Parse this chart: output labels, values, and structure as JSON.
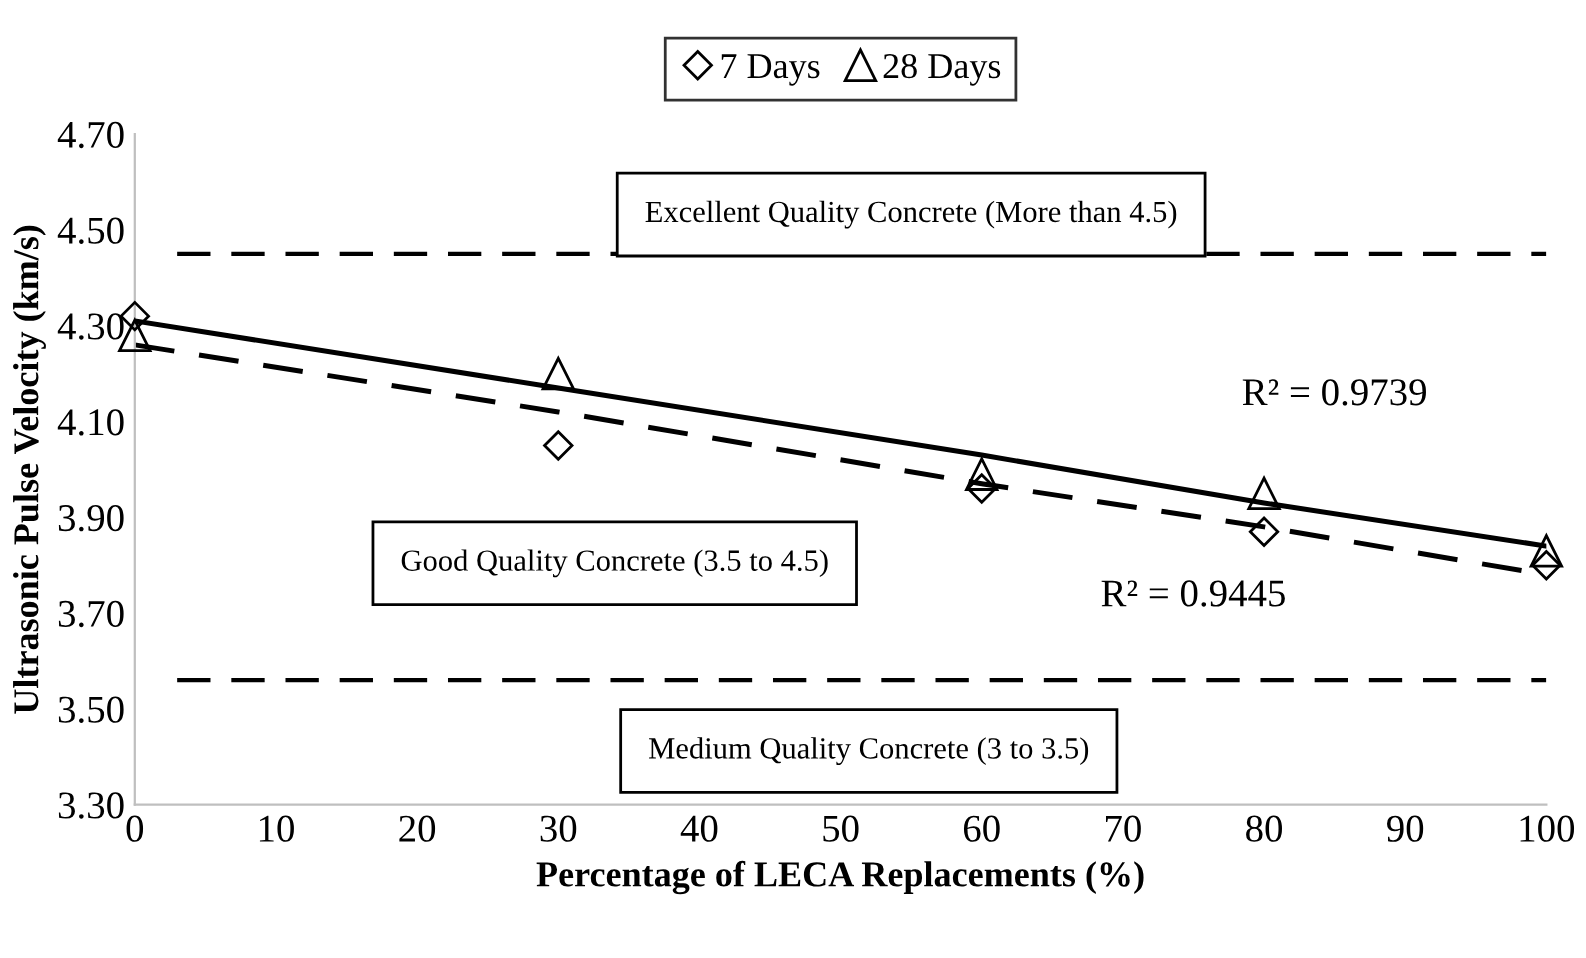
{
  "chart_data": {
    "type": "scatter",
    "xlabel": "Percentage of LECA Replacements (%)",
    "ylabel": "Ultrasonic Pulse Velocity (km/s)",
    "x": [
      0,
      30,
      60,
      80,
      100
    ],
    "series": [
      {
        "name": "7 Days",
        "color": "#000000",
        "marker": "diamond",
        "values": [
          4.32,
          4.05,
          3.96,
          3.87,
          3.8
        ]
      },
      {
        "name": "28 Days",
        "color": "#000000",
        "marker": "triangle",
        "values": [
          4.28,
          4.2,
          3.99,
          3.95,
          3.83
        ]
      },
      {
        "type": "line",
        "color": "#000000",
        "line_style": "solid",
        "marker": "none",
        "values": [
          4.31,
          4.17,
          4.03,
          3.93,
          3.84
        ]
      },
      {
        "type": "line",
        "color": "#000000",
        "line_style": "dashed",
        "marker": "none",
        "values": [
          4.26,
          4.12,
          3.97,
          3.88,
          3.78
        ]
      }
    ],
    "xlim": [
      0,
      100
    ],
    "xticks": [
      0,
      10,
      20,
      30,
      40,
      50,
      60,
      70,
      80,
      90,
      100
    ],
    "ylim": [
      3.3,
      4.7
    ],
    "yticks": [
      {
        "value": 3.3,
        "label": "3.30"
      },
      {
        "value": 3.5,
        "label": "3.50"
      },
      {
        "value": 3.7,
        "label": "3.70"
      },
      {
        "value": 3.9,
        "label": "3.90"
      },
      {
        "value": 4.1,
        "label": "4.10"
      },
      {
        "value": 4.3,
        "label": "4.30"
      },
      {
        "value": 4.5,
        "label": "4.50"
      },
      {
        "value": 4.7,
        "label": "4.70"
      }
    ],
    "ref_lines": [
      {
        "axis": "y",
        "value": 4.45,
        "color": "#000000",
        "line_style": "dashed"
      },
      {
        "axis": "y",
        "value": 3.56,
        "color": "#000000",
        "line_style": "dashed"
      }
    ],
    "annotations": [
      "Excellent Quality Concrete (More than 4.5)",
      "Good Quality Concrete (3.5 to 4.5)",
      "Medium Quality Concrete (3 to 3.5)",
      "R² = 0.9739",
      "R² = 0.9445"
    ],
    "grid": false,
    "legend": "top"
  }
}
